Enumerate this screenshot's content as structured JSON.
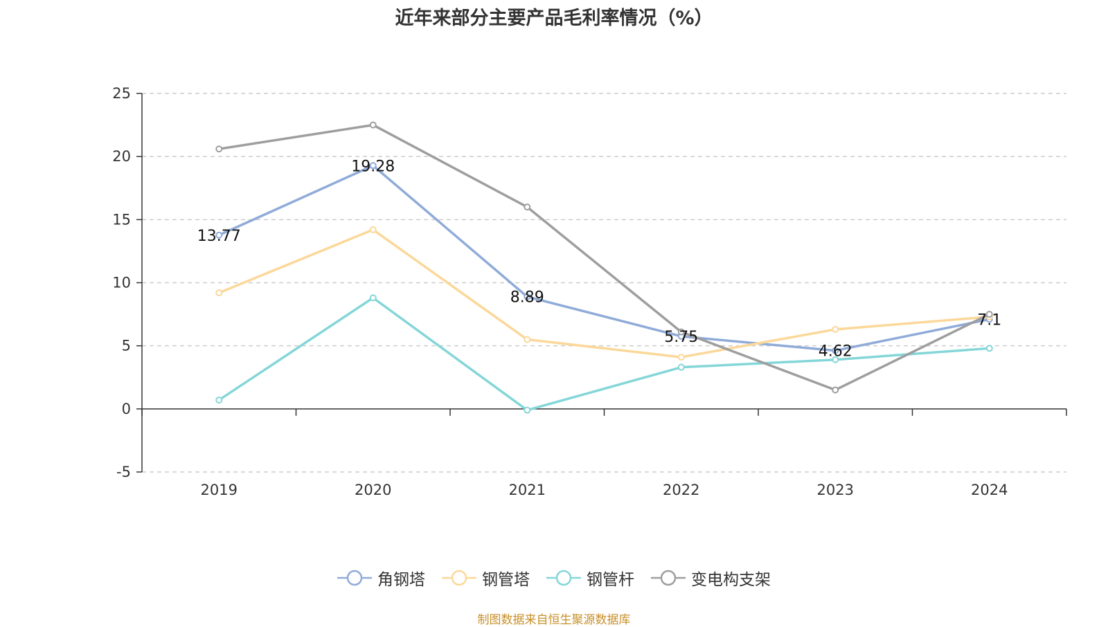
{
  "chart_data": {
    "type": "line",
    "title": "近年来部分主要产品毛利率情况（%）",
    "categories": [
      "2019",
      "2020",
      "2021",
      "2022",
      "2023",
      "2024"
    ],
    "ylim": [
      -5,
      25
    ],
    "yticks": [
      -5,
      0,
      5,
      10,
      15,
      20,
      25
    ],
    "grid": true,
    "legend_position": "bottom-center",
    "series": [
      {
        "name": "角钢塔",
        "color": "#8fabd8",
        "values": [
          13.77,
          19.28,
          8.89,
          5.75,
          4.62,
          7.1
        ],
        "labels": [
          "13.77",
          "19.28",
          "8.89",
          "5.75",
          "4.62",
          "7.1"
        ]
      },
      {
        "name": "钢管塔",
        "color": "#fbd899",
        "values": [
          9.2,
          14.2,
          5.5,
          4.1,
          6.3,
          7.3
        ]
      },
      {
        "name": "钢管杆",
        "color": "#84d6d8",
        "values": [
          0.7,
          8.8,
          -0.1,
          3.3,
          3.9,
          4.8
        ]
      },
      {
        "name": "变电构支架",
        "color": "#9e9e9e",
        "values": [
          20.6,
          22.5,
          16.0,
          6.1,
          1.5,
          7.5
        ]
      }
    ]
  },
  "footer": {
    "source": "制图数据来自恒生聚源数据库"
  }
}
